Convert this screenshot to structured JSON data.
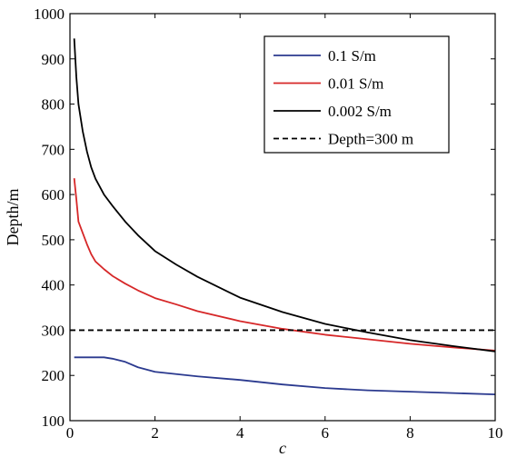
{
  "chart_data": {
    "type": "line",
    "title": "",
    "xlabel": "c",
    "ylabel": "Depth/m",
    "xlim": [
      0,
      10
    ],
    "ylim": [
      100,
      1000
    ],
    "xticks": [
      0,
      2,
      4,
      6,
      8,
      10
    ],
    "yticks": [
      100,
      200,
      300,
      400,
      500,
      600,
      700,
      800,
      900,
      1000
    ],
    "grid": false,
    "legend_position": "top-right",
    "series": [
      {
        "name": "0.1 S/m",
        "color": "#2b3a8f",
        "style": "solid",
        "x": [
          0.1,
          0.5,
          0.8,
          1.0,
          1.3,
          1.6,
          2.0,
          2.5,
          3.0,
          4.0,
          5.0,
          6.0,
          7.0,
          8.0,
          9.0,
          10.0
        ],
        "y": [
          240,
          240,
          240,
          237,
          230,
          218,
          208,
          203,
          198,
          190,
          180,
          172,
          167,
          164,
          161,
          158
        ]
      },
      {
        "name": "0.01 S/m",
        "color": "#d62728",
        "style": "solid",
        "x": [
          0.1,
          0.15,
          0.2,
          0.3,
          0.4,
          0.5,
          0.6,
          0.8,
          1.0,
          1.3,
          1.6,
          2.0,
          2.5,
          3.0,
          4.0,
          5.0,
          6.0,
          7.0,
          8.0,
          9.0,
          10.0
        ],
        "y": [
          636,
          590,
          540,
          515,
          490,
          468,
          452,
          435,
          420,
          403,
          388,
          371,
          357,
          342,
          320,
          303,
          290,
          280,
          270,
          262,
          255
        ]
      },
      {
        "name": "0.002 S/m",
        "color": "#000000",
        "style": "solid",
        "x": [
          0.1,
          0.15,
          0.2,
          0.3,
          0.4,
          0.5,
          0.6,
          0.8,
          1.0,
          1.3,
          1.6,
          2.0,
          2.5,
          3.0,
          4.0,
          5.0,
          6.0,
          7.0,
          8.0,
          9.0,
          10.0
        ],
        "y": [
          945,
          860,
          800,
          740,
          695,
          660,
          635,
          600,
          575,
          540,
          510,
          475,
          445,
          418,
          372,
          340,
          314,
          295,
          278,
          265,
          253
        ]
      },
      {
        "name": "Depth=300 m",
        "color": "#000000",
        "style": "dashed",
        "x": [
          0,
          10
        ],
        "y": [
          300,
          300
        ]
      }
    ]
  }
}
